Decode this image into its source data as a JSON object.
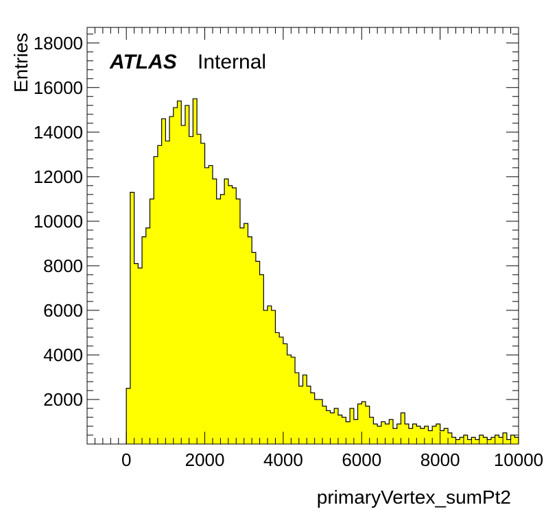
{
  "chart_data": {
    "type": "histogram",
    "title": "",
    "xlabel": "primaryVertex_sumPt2",
    "ylabel": "Entries",
    "xlim": [
      -1000,
      10000
    ],
    "ylim": [
      0,
      18700
    ],
    "x_ticks": [
      0,
      2000,
      4000,
      6000,
      8000,
      10000
    ],
    "x_tick_labels": [
      "0",
      "2000",
      "4000",
      "6000",
      "8000",
      "10000"
    ],
    "y_ticks": [
      2000,
      4000,
      6000,
      8000,
      10000,
      12000,
      14000,
      16000,
      18000
    ],
    "y_tick_labels": [
      "2000",
      "4000",
      "6000",
      "8000",
      "10000",
      "12000",
      "14000",
      "16000",
      "18000"
    ],
    "bin_width": 100,
    "bin_edges_start": 0,
    "fill_color": "#ffff00",
    "line_color": "#000000",
    "grid": false,
    "values": [
      2500,
      11300,
      8100,
      7900,
      9300,
      9700,
      11000,
      12900,
      13400,
      14600,
      13600,
      14700,
      15100,
      15400,
      14300,
      15200,
      13800,
      15500,
      13900,
      13500,
      12400,
      12500,
      11900,
      11000,
      11200,
      11900,
      11600,
      11500,
      11000,
      9700,
      9900,
      9300,
      8600,
      8200,
      7600,
      6000,
      6200,
      6000,
      5000,
      4800,
      4500,
      4000,
      3900,
      3200,
      2600,
      3100,
      2600,
      2300,
      2000,
      2000,
      1700,
      1500,
      1400,
      1600,
      1300,
      1200,
      1000,
      1600,
      1100,
      1800,
      1900,
      1700,
      1200,
      900,
      800,
      1000,
      900,
      1100,
      700,
      900,
      1400,
      900,
      700,
      900,
      800,
      700,
      800,
      600,
      800,
      900,
      600,
      700,
      500,
      300,
      200,
      300,
      400,
      200,
      300,
      200,
      400,
      300,
      200,
      300,
      400,
      300,
      500,
      200,
      400,
      300
    ]
  },
  "labels": {
    "atlas": "ATLAS",
    "internal": "Internal"
  }
}
